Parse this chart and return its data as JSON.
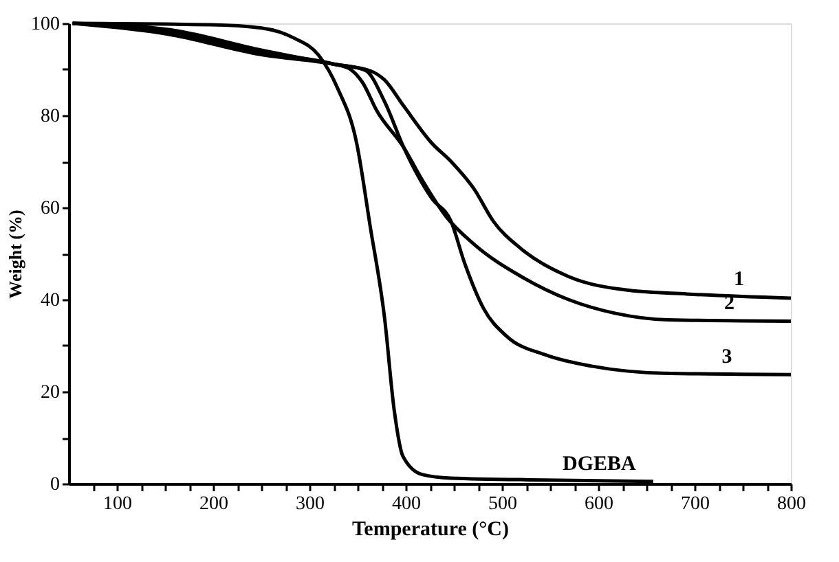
{
  "chart_data": {
    "type": "line",
    "xlabel": "Temperature   (°C)",
    "ylabel": "Weight (%)",
    "xlim": [
      50,
      800
    ],
    "ylim": [
      0,
      100
    ],
    "xticks": [
      {
        "value": 75,
        "label": null
      },
      100,
      {
        "value": 125,
        "label": null
      },
      {
        "value": 150,
        "label": null
      },
      {
        "value": 175,
        "label": null
      },
      200,
      {
        "value": 225,
        "label": null
      },
      {
        "value": 250,
        "label": null
      },
      {
        "value": 275,
        "label": null
      },
      300,
      {
        "value": 325,
        "label": null
      },
      {
        "value": 350,
        "label": null
      },
      {
        "value": 375,
        "label": null
      },
      400,
      {
        "value": 425,
        "label": null
      },
      {
        "value": 450,
        "label": null
      },
      {
        "value": 475,
        "label": null
      },
      500,
      {
        "value": 525,
        "label": null
      },
      {
        "value": 550,
        "label": null
      },
      {
        "value": 575,
        "label": null
      },
      600,
      {
        "value": 625,
        "label": null
      },
      {
        "value": 650,
        "label": null
      },
      {
        "value": 675,
        "label": null
      },
      700,
      {
        "value": 725,
        "label": null
      },
      {
        "value": 750,
        "label": null
      },
      {
        "value": 775,
        "label": null
      },
      800
    ],
    "yticks": [
      0,
      {
        "value": 10,
        "label": null
      },
      20,
      {
        "value": 30,
        "label": null
      },
      40,
      {
        "value": 50,
        "label": null
      },
      60,
      {
        "value": 70,
        "label": null
      },
      80,
      {
        "value": 90,
        "label": null
      },
      100
    ],
    "grid": false,
    "legend": false,
    "line_style": "solid",
    "marker": "none",
    "series": [
      {
        "name": "1",
        "color": "#000000",
        "x": [
          54,
          152,
          250,
          324,
          363,
          378,
          398,
          427,
          447,
          471,
          491,
          520,
          569,
          632,
          692,
          800
        ],
        "values": [
          100,
          98.7,
          94.2,
          91.2,
          89.7,
          87.7,
          82,
          74,
          70,
          64,
          57,
          51,
          45,
          42,
          41.2,
          40.3
        ]
      },
      {
        "name": "2",
        "color": "#000000",
        "x": [
          54,
          152,
          250,
          324,
          341,
          355,
          370,
          398,
          417,
          442,
          471,
          520,
          569,
          618,
          672,
          800
        ],
        "values": [
          100,
          98.2,
          93.7,
          91.2,
          90.2,
          87.2,
          81,
          73,
          66,
          58,
          52,
          45,
          40,
          37,
          35.6,
          35.3
        ]
      },
      {
        "name": "3",
        "color": "#000000",
        "x": [
          54,
          152,
          250,
          324,
          358,
          378,
          398,
          427,
          447,
          461,
          481,
          505,
          545,
          594,
          667,
          800
        ],
        "values": [
          100,
          97.7,
          93.2,
          91.2,
          89.8,
          83,
          73,
          62,
          57,
          48,
          38,
          32,
          28,
          25.5,
          24,
          23.7
        ]
      },
      {
        "name": "DGEBA",
        "color": "#000000",
        "x": [
          54,
          197,
          250,
          285,
          309,
          329,
          349,
          363,
          378,
          388,
          397,
          417,
          447,
          545,
          657
        ],
        "values": [
          100,
          99.7,
          99,
          96.7,
          93.2,
          86,
          74,
          56,
          36,
          16,
          6,
          2,
          1.2,
          0.8,
          0.5
        ]
      }
    ]
  }
}
